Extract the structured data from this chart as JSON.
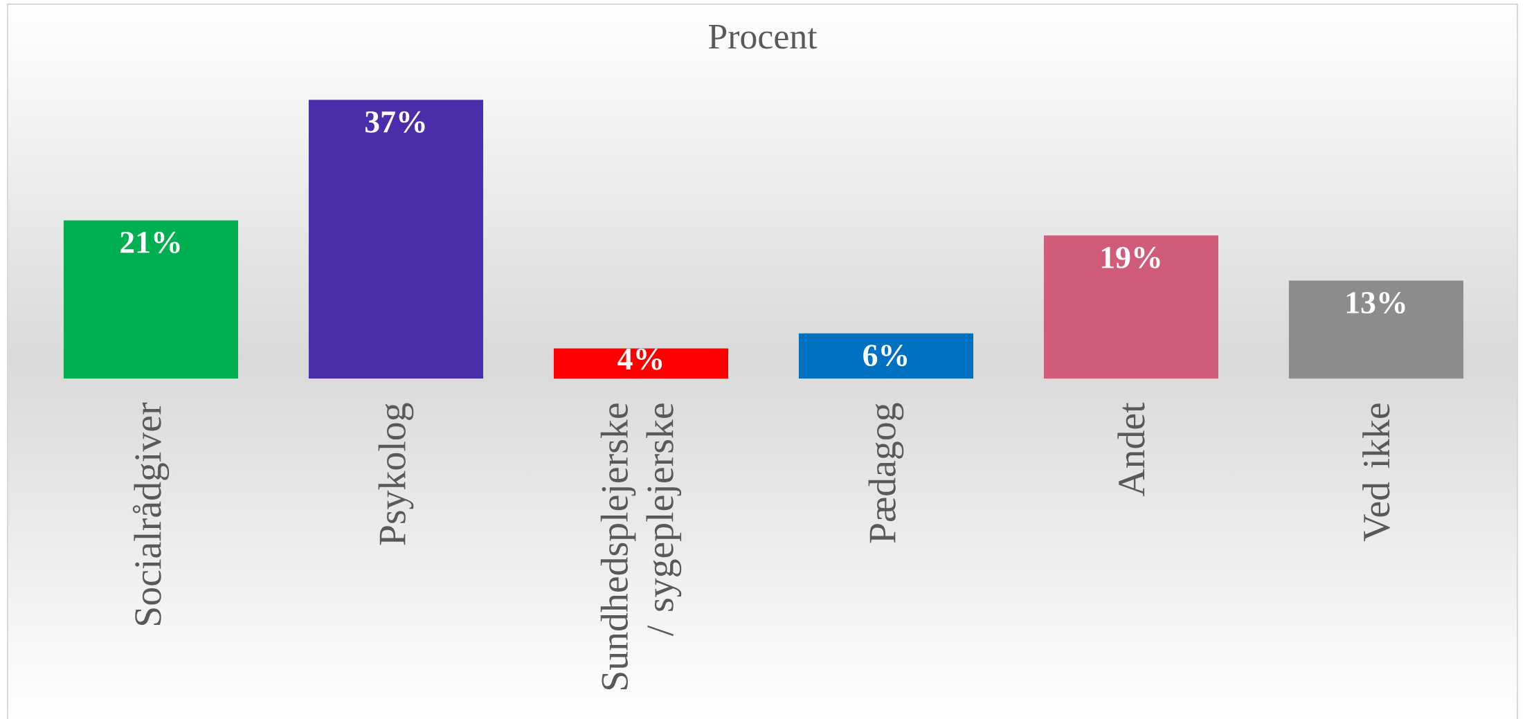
{
  "chart_data": {
    "type": "bar",
    "title": "Procent",
    "categories": [
      "Socialrådgiver",
      "Psykolog",
      "Sundhedsplejerske / sygeplejerske",
      "Pædagog",
      "Andet",
      "Ved ikke"
    ],
    "values": [
      21,
      37,
      4,
      6,
      19,
      13
    ],
    "colors": [
      "#00b050",
      "#4b2cab",
      "#ff0000",
      "#0070c0",
      "#d05c7a",
      "#8c8c8c"
    ],
    "value_labels": [
      "21%",
      "37%",
      "4%",
      "6%",
      "19%",
      "13%"
    ],
    "tick_labels": "x"
  }
}
